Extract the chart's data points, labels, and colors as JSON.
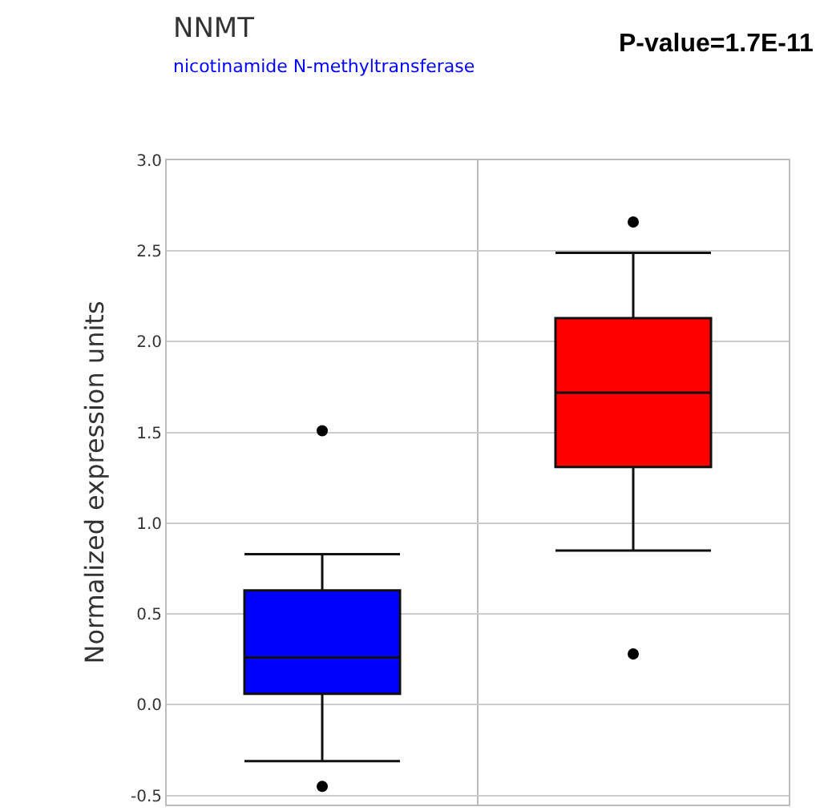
{
  "chart_data": {
    "type": "box",
    "title": "NNMT",
    "subtitle": "nicotinamide N-methyltransferase",
    "ylabel": "Normalized expression units",
    "annotations": [
      "P-value=1.7E-11"
    ],
    "categories": [
      null,
      null
    ],
    "colors": [
      "#0000ff",
      "#ff0000"
    ],
    "boxes": [
      {
        "low": -0.31,
        "q1": 0.06,
        "median": 0.26,
        "q3": 0.63,
        "high": 0.83,
        "outliers": [
          1.51,
          -0.45
        ]
      },
      {
        "low": 0.85,
        "q1": 1.31,
        "median": 1.72,
        "q3": 2.13,
        "high": 2.49,
        "outliers": [
          2.66,
          0.28
        ]
      }
    ],
    "ylim": [
      -0.55,
      3.0
    ],
    "yticks": [
      {
        "value": -0.5,
        "label": "-0.5"
      },
      {
        "value": 0,
        "label": "0.0"
      },
      {
        "value": 0.5,
        "label": "0.5"
      },
      {
        "value": 1,
        "label": "1.0"
      },
      {
        "value": 1.5,
        "label": "1.5"
      },
      {
        "value": 2,
        "label": "2.0"
      },
      {
        "value": 2.5,
        "label": "2.5"
      },
      {
        "value": 3,
        "label": "3.0"
      }
    ],
    "grid": true
  }
}
